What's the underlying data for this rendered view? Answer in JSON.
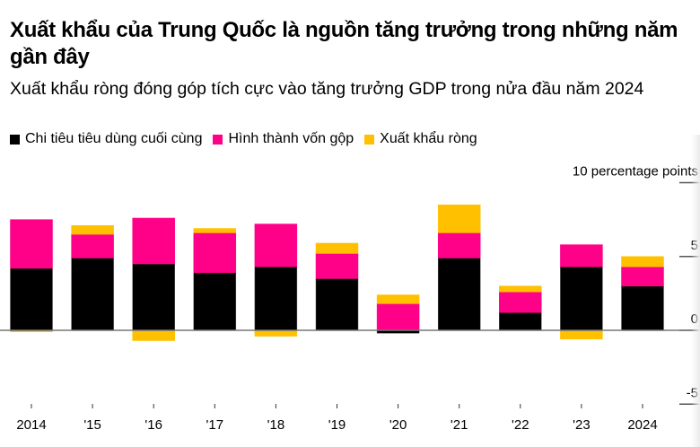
{
  "title": "Xuất khẩu của Trung Quốc là nguồn tăng trưởng trong những năm gần đây",
  "subtitle": "Xuất khẩu ròng đóng góp tích cực vào tăng trưởng GDP trong nửa đầu năm 2024",
  "legend": [
    {
      "label": "Chi tiêu tiêu dùng cuối cùng",
      "color": "#000000"
    },
    {
      "label": "Hình thành vốn gộp",
      "color": "#FF0088"
    },
    {
      "label": "Xuất khẩu ròng",
      "color": "#FFC000"
    }
  ],
  "chart_data": {
    "type": "bar",
    "stacked": true,
    "title": "Xuất khẩu của Trung Quốc là nguồn tăng trưởng trong những năm gần đây",
    "subtitle": "Xuất khẩu ròng đóng góp tích cực vào tăng trưởng GDP trong nửa đầu năm 2024",
    "ylabel": "10 percentage points",
    "xlabel": "",
    "ylim": [
      -5,
      10
    ],
    "yticks": [
      {
        "value": 10,
        "label": "10 percentage points"
      },
      {
        "value": 5,
        "label": "5"
      },
      {
        "value": 0,
        "label": "0"
      },
      {
        "value": -5,
        "label": "-5"
      }
    ],
    "categories": [
      "2014",
      "'15",
      "'16",
      "'17",
      "'18",
      "'19",
      "'20",
      "'21",
      "'22",
      "'23",
      "2024"
    ],
    "series": [
      {
        "name": "Chi tiêu tiêu dùng cuối cùng",
        "color": "#000000",
        "values": [
          4.2,
          4.9,
          4.5,
          3.9,
          4.3,
          3.5,
          -0.2,
          4.9,
          1.2,
          4.3,
          3.0
        ]
      },
      {
        "name": "Hình thành vốn gộp",
        "color": "#FF0088",
        "values": [
          3.3,
          1.6,
          3.1,
          2.7,
          2.9,
          1.7,
          1.8,
          1.7,
          1.4,
          1.5,
          1.3
        ]
      },
      {
        "name": "Xuất khẩu ròng",
        "color": "#FFC000",
        "values": [
          -0.1,
          0.6,
          -0.7,
          0.3,
          -0.4,
          0.7,
          0.6,
          1.9,
          0.4,
          -0.6,
          0.7
        ]
      }
    ],
    "legend_position": "top-left",
    "grid": false
  }
}
